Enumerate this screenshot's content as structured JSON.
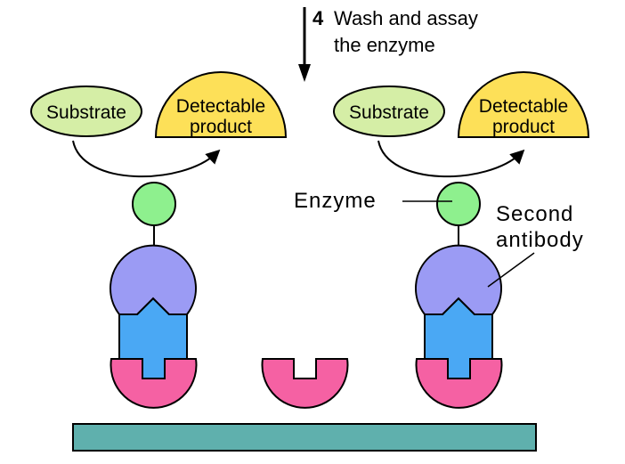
{
  "step": {
    "number": "4",
    "line1": "Wash and assay",
    "line2": "the enzyme"
  },
  "left_group": {
    "substrate": "Substrate",
    "product_line1": "Detectable",
    "product_line2": "product"
  },
  "right_group": {
    "substrate": "Substrate",
    "product_line1": "Detectable",
    "product_line2": "product"
  },
  "labels": {
    "enzyme": "Enzyme",
    "second_antibody_line1": "Second",
    "second_antibody_line2": "antibody"
  },
  "colors": {
    "substrate_fill": "#d5eea6",
    "product_fill": "#fde058",
    "enzyme_fill": "#8ef08e",
    "second_antibody_fill": "#9b9bf4",
    "first_antibody_fill": "#4aa8f4",
    "antigen_fill": "#f561a3",
    "surface_fill": "#5fb0ad"
  }
}
